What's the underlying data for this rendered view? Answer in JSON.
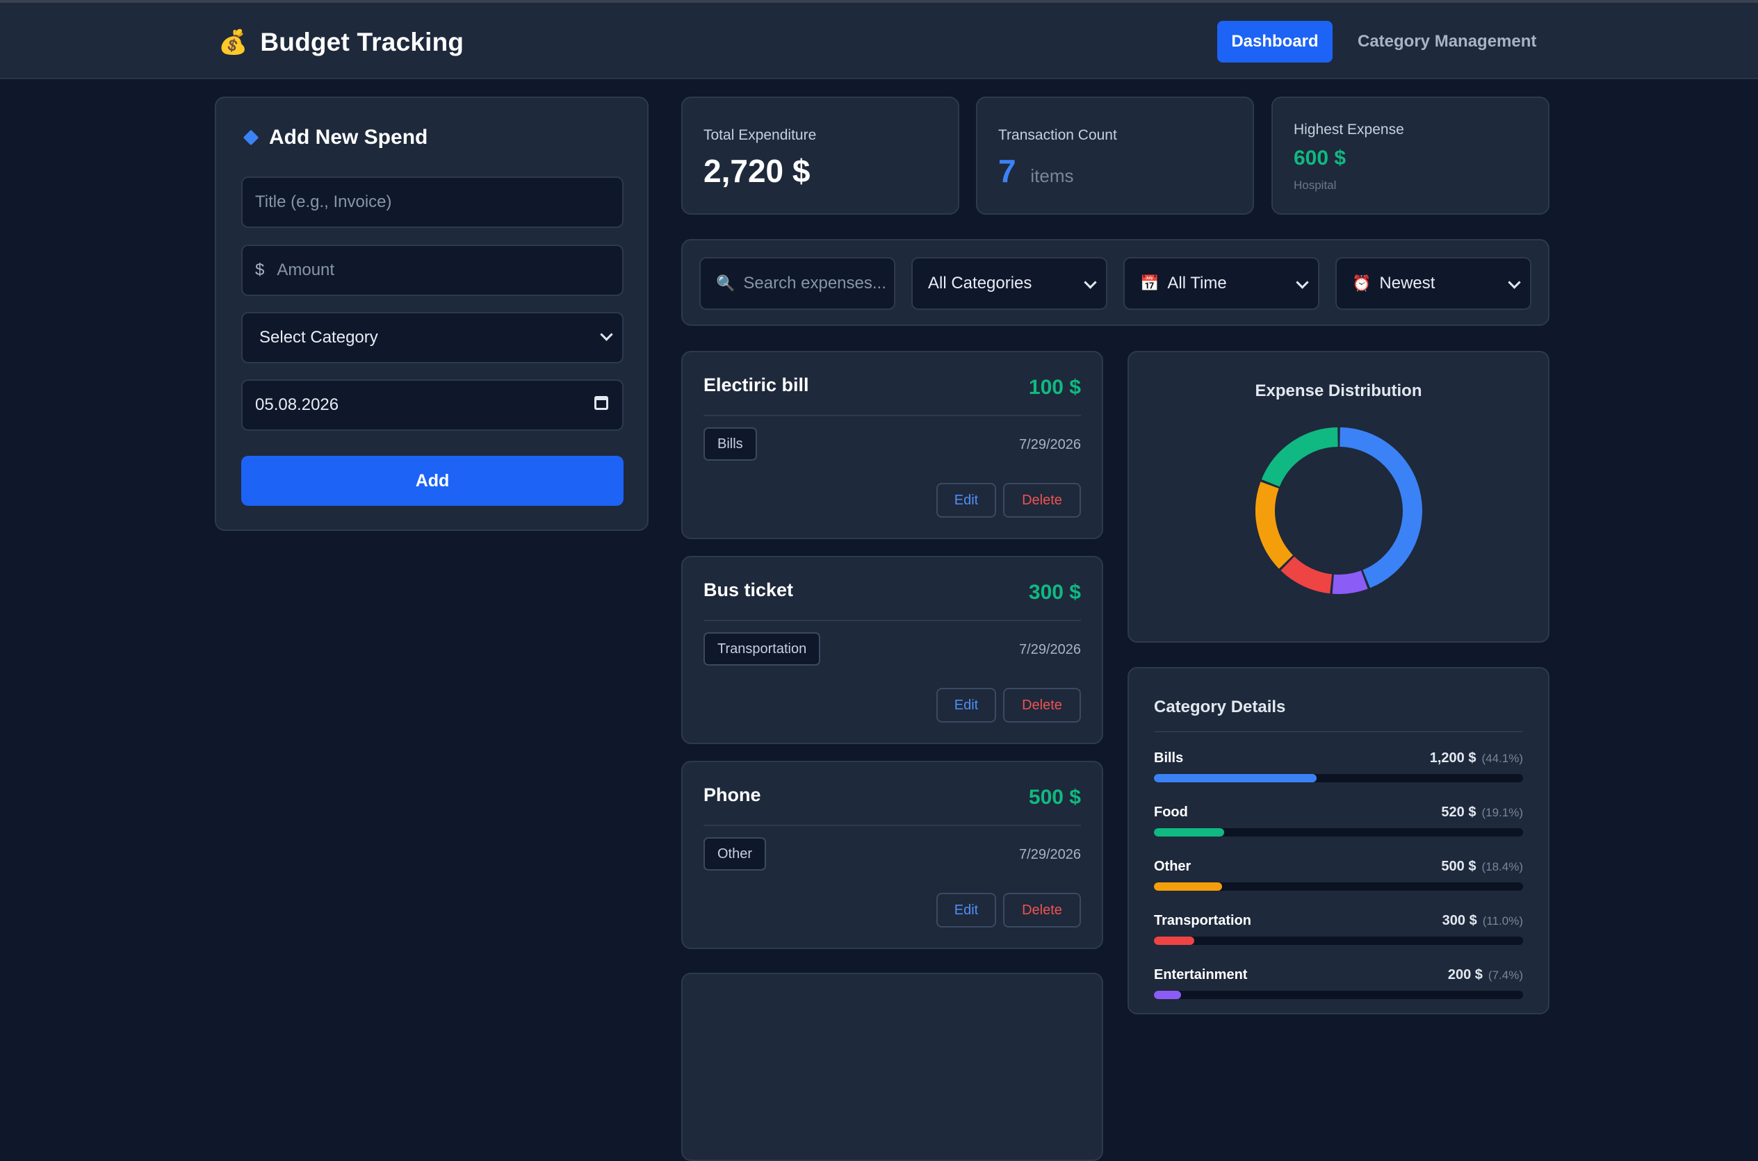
{
  "app": {
    "title": "Budget Tracking",
    "icon": "money-bag-icon"
  },
  "nav": {
    "dashboard": "Dashboard",
    "category_management": "Category Management"
  },
  "form": {
    "heading": "Add New Spend",
    "title_placeholder": "Title (e.g., Invoice)",
    "amount_prefix": "$",
    "amount_placeholder": "Amount",
    "category_select": "Select Category",
    "date_value": "05.08.2026",
    "add_label": "Add"
  },
  "stats": {
    "total_label": "Total Expenditure",
    "total_value": "2,720 $",
    "count_label": "Transaction Count",
    "count_value": "7",
    "count_unit": "items",
    "highest_label": "Highest Expense",
    "highest_value": "600 $",
    "highest_name": "Hospital"
  },
  "filters": {
    "search_placeholder": "Search expenses...",
    "category": "All Categories",
    "time": "All Time",
    "sort": "Newest"
  },
  "expenses": [
    {
      "title": "Electiric bill",
      "amount": "100 $",
      "category": "Bills",
      "date": "7/29/2026",
      "edit": "Edit",
      "delete": "Delete"
    },
    {
      "title": "Bus ticket",
      "amount": "300 $",
      "category": "Transportation",
      "date": "7/29/2026",
      "edit": "Edit",
      "delete": "Delete"
    },
    {
      "title": "Phone",
      "amount": "500 $",
      "category": "Other",
      "date": "7/29/2026",
      "edit": "Edit",
      "delete": "Delete"
    }
  ],
  "distribution": {
    "title": "Expense Distribution",
    "segments": [
      {
        "name": "Bills",
        "value": 1200,
        "color": "#3b82f6"
      },
      {
        "name": "Entertainment",
        "value": 200,
        "color": "#8b5cf6"
      },
      {
        "name": "Transportation",
        "value": 300,
        "color": "#ef4444"
      },
      {
        "name": "Other",
        "value": 500,
        "color": "#f59e0b"
      },
      {
        "name": "Food",
        "value": 520,
        "color": "#10b981"
      }
    ]
  },
  "details": {
    "title": "Category Details",
    "rows": [
      {
        "name": "Bills",
        "value": "1,200 $",
        "pct": "(44.1%)",
        "fraction": 0.441,
        "color": "#3b82f6"
      },
      {
        "name": "Food",
        "value": "520 $",
        "pct": "(19.1%)",
        "fraction": 0.191,
        "color": "#10b981"
      },
      {
        "name": "Other",
        "value": "500 $",
        "pct": "(18.4%)",
        "fraction": 0.184,
        "color": "#f59e0b"
      },
      {
        "name": "Transportation",
        "value": "300 $",
        "pct": "(11.0%)",
        "fraction": 0.11,
        "color": "#ef4444"
      },
      {
        "name": "Entertainment",
        "value": "200 $",
        "pct": "(7.4%)",
        "fraction": 0.074,
        "color": "#8b5cf6"
      }
    ]
  }
}
